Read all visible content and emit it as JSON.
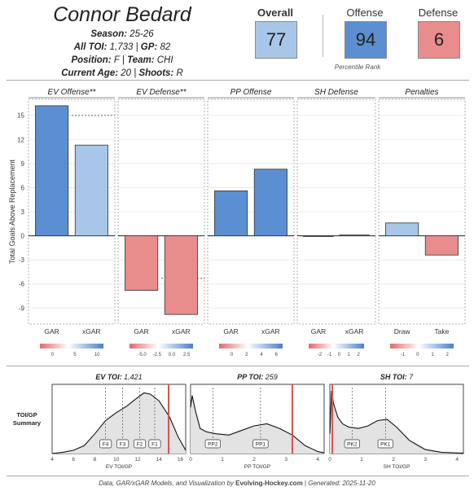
{
  "player": {
    "name": "Connor Bedard",
    "season_label": "Season:",
    "season": "25-26",
    "toi_label": "All TOI:",
    "toi": "1,733",
    "gp_label": "GP:",
    "gp": "82",
    "position_label": "Position:",
    "position": "F",
    "team_label": "Team:",
    "team": "CHI",
    "age_label": "Current Age:",
    "age": "20",
    "shoots_label": "Shoots:",
    "shoots": "R"
  },
  "scores": {
    "overall_label": "Overall",
    "overall": "77",
    "offense_label": "Offense",
    "offense": "94",
    "defense_label": "Defense",
    "defense": "6",
    "percentile_label": "Percentile Rank",
    "colors": {
      "overall": "#a8c6e8",
      "offense": "#5b8fd1",
      "defense": "#e98c8c"
    }
  },
  "chart_data": [
    {
      "type": "bar",
      "ylabel": "Total Goals Above Replacement",
      "ylim": [
        -11,
        17
      ],
      "yticks": [
        -9,
        -6,
        -3,
        0,
        3,
        6,
        9,
        12,
        15
      ],
      "panels": [
        {
          "title": "EV Offense**",
          "categories": [
            "GAR",
            "xGAR"
          ],
          "values": [
            16.2,
            11.3
          ],
          "reference_line": 15.0,
          "legend_ticks": [
            "0",
            "5",
            "10"
          ]
        },
        {
          "title": "EV Defense**",
          "categories": [
            "GAR",
            "xGAR"
          ],
          "values": [
            -6.8,
            -9.8
          ],
          "reference_line": -5.3,
          "legend_ticks": [
            "-5.0",
            "-2.5",
            "0.0",
            "2.5"
          ]
        },
        {
          "title": "PP Offense",
          "categories": [
            "GAR",
            "xGAR"
          ],
          "values": [
            5.6,
            8.3
          ],
          "legend_ticks": [
            "0",
            "2",
            "4",
            "6"
          ]
        },
        {
          "title": "SH Defense",
          "categories": [
            "GAR",
            "xGAR"
          ],
          "values": [
            -0.1,
            0.1
          ],
          "legend_ticks": [
            "-2",
            "-1",
            "0",
            "1",
            "2"
          ]
        },
        {
          "title": "Penalties",
          "categories": [
            "Draw",
            "Take"
          ],
          "values": [
            1.6,
            -2.4
          ],
          "legend_ticks": [
            "-1",
            "0",
            "1",
            "2"
          ]
        }
      ]
    },
    {
      "type": "area",
      "title_label": "EV TOI:",
      "title_value": "1,421",
      "xlabel": "EV TOI/GP",
      "xlim": [
        4,
        16.5
      ],
      "xticks": [
        "4",
        "6",
        "8",
        "10",
        "12",
        "14",
        "16"
      ],
      "player_value": 14.9,
      "markers": [
        {
          "label": "F4",
          "value": 9.0
        },
        {
          "label": "F3",
          "value": 10.6
        },
        {
          "label": "F2",
          "value": 12.2
        },
        {
          "label": "F1",
          "value": 13.6
        }
      ]
    },
    {
      "type": "area",
      "title_label": "PP TOI:",
      "title_value": "259",
      "xlabel": "PP TOI/GP",
      "xlim": [
        0,
        4.2
      ],
      "xticks": [
        "0",
        "1",
        "2",
        "3",
        "4"
      ],
      "player_value": 3.2,
      "markers": [
        {
          "label": "PP2",
          "value": 0.7
        },
        {
          "label": "PP1",
          "value": 2.2
        }
      ]
    },
    {
      "type": "area",
      "title_label": "SH TOI:",
      "title_value": "7",
      "xlabel": "SH TOI/GP",
      "xlim": [
        0,
        4.2
      ],
      "xticks": [
        "0",
        "1",
        "2",
        "3",
        "4"
      ],
      "player_value": 0.08,
      "markers": [
        {
          "label": "PK2",
          "value": 0.7
        },
        {
          "label": "PK1",
          "value": 1.75
        }
      ]
    }
  ],
  "summary_label_1": "TOI/GP",
  "summary_label_2": "Summary",
  "footer": {
    "prefix": "Data, GAR/xGAR Models, and Visualization by",
    "site": "Evolving-Hockey.com",
    "suffix": "| Generated: 2025-11-20"
  }
}
